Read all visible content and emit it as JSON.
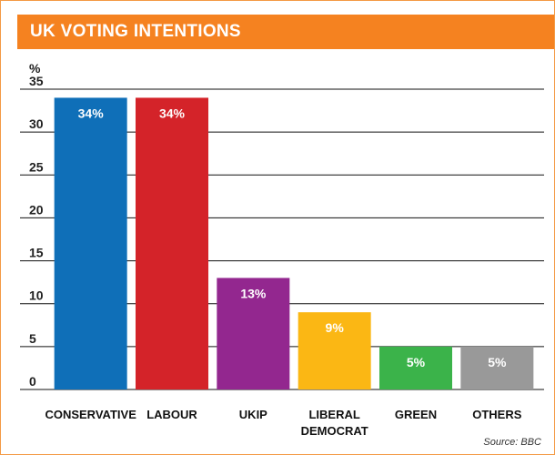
{
  "header": {
    "title": "UK VOTING INTENTIONS"
  },
  "source": "Source: BBC",
  "colors": {
    "accent": "#f58220",
    "grid": "#111111",
    "conservative": "#0f6fb8",
    "labour": "#d42329",
    "ukip": "#93278f",
    "liberal_democrat": "#fbb714",
    "green": "#3bb34a",
    "others": "#999999"
  },
  "chart_data": {
    "type": "bar",
    "title": "UK VOTING INTENTIONS",
    "ylabel": "%",
    "xlabel": "",
    "ylim": [
      0,
      35
    ],
    "yticks": [
      0,
      5,
      10,
      15,
      20,
      25,
      30,
      35
    ],
    "grid": true,
    "categories": [
      [
        "CONSERVATIVE"
      ],
      [
        "LABOUR"
      ],
      [
        "UKIP"
      ],
      [
        "LIBERAL",
        "DEMOCRAT"
      ],
      [
        "GREEN"
      ],
      [
        "OTHERS"
      ]
    ],
    "values": [
      34,
      34,
      13,
      9,
      5,
      5
    ],
    "data_labels": [
      "34%",
      "34%",
      "13%",
      "9%",
      "5%",
      "5%"
    ],
    "bar_colors": [
      "#0f6fb8",
      "#d42329",
      "#93278f",
      "#fbb714",
      "#3bb34a",
      "#999999"
    ]
  }
}
